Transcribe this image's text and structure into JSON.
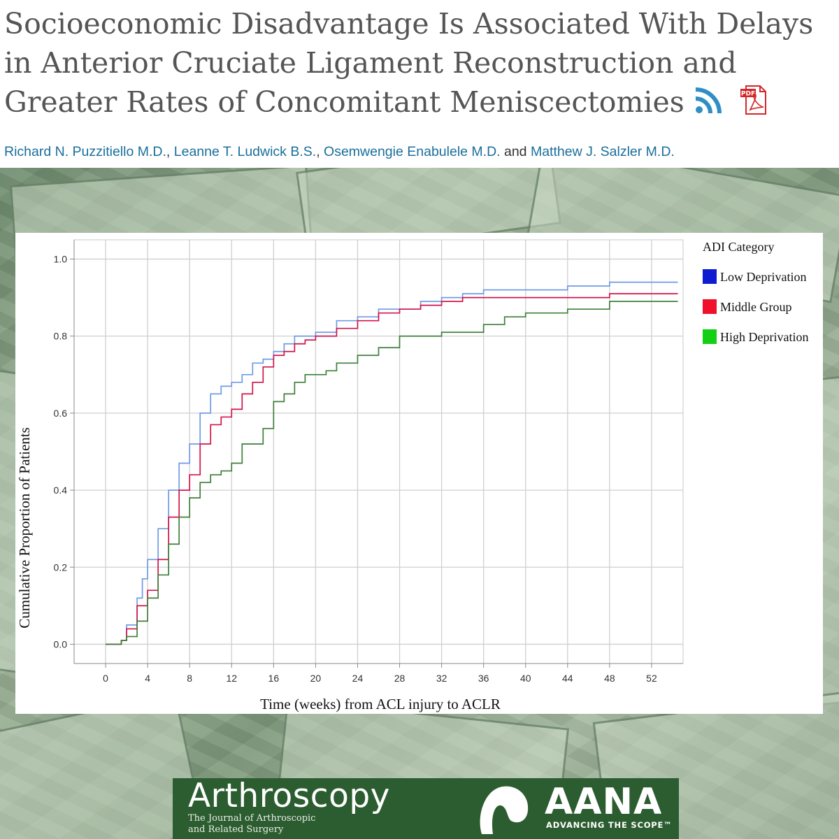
{
  "article": {
    "title": "Socioeconomic Disadvantage Is Associated With Delays in Anterior Cruciate Ligament Reconstruction and Greater Rates of Concomitant Meniscectomies",
    "authors": [
      {
        "name": "Richard N. Puzzitiello M.D."
      },
      {
        "name": "Leanne T. Ludwick B.S."
      },
      {
        "name": "Osemwengie Enabulele M.D."
      },
      {
        "name": "Matthew J. Salzler M.D."
      }
    ],
    "sep_comma": ", ",
    "sep_and": " and "
  },
  "icons": {
    "rss": "rss-feed-icon",
    "pdf": "pdf-icon",
    "pdf_label": "PDF"
  },
  "colors": {
    "low": "#6f9be6",
    "middle": "#d2144b",
    "high": "#3f7f3a",
    "footer": "#2c5d30"
  },
  "chart_data": {
    "type": "line",
    "xlabel": "Time (weeks) from ACL injury to ACLR",
    "ylabel": "Cumulative Proportion of Patients",
    "xlim": [
      -3,
      55
    ],
    "ylim": [
      -0.05,
      1.05
    ],
    "xticks": [
      0,
      4,
      8,
      12,
      16,
      20,
      24,
      28,
      32,
      36,
      40,
      44,
      48,
      52
    ],
    "yticks": [
      0.0,
      0.2,
      0.4,
      0.6,
      0.8,
      1.0
    ],
    "ytick_labels": [
      "0.0",
      "0.2",
      "0.4",
      "0.6",
      "0.8",
      "1.0"
    ],
    "grid": true,
    "legend": {
      "title": "ADI Category",
      "position": "top-right"
    },
    "series": [
      {
        "name": "Low Deprivation",
        "color": "#6f9be6",
        "legend_color": "#0f1bd1",
        "x": [
          0,
          1.5,
          2,
          3,
          3.5,
          4,
          5,
          6,
          7,
          8,
          9,
          10,
          11,
          12,
          13,
          14,
          15,
          16,
          17,
          18,
          19,
          20,
          22,
          24,
          26,
          28,
          30,
          32,
          34,
          36,
          38,
          40,
          44,
          46,
          48,
          50,
          52,
          54.5
        ],
        "y": [
          0,
          0.01,
          0.05,
          0.12,
          0.17,
          0.22,
          0.3,
          0.4,
          0.47,
          0.52,
          0.6,
          0.65,
          0.67,
          0.68,
          0.7,
          0.73,
          0.74,
          0.76,
          0.78,
          0.8,
          0.8,
          0.81,
          0.84,
          0.85,
          0.87,
          0.87,
          0.89,
          0.9,
          0.91,
          0.92,
          0.92,
          0.92,
          0.93,
          0.93,
          0.94,
          0.94,
          0.94,
          0.94
        ]
      },
      {
        "name": "Middle Group",
        "color": "#d2144b",
        "legend_color": "#f0102b",
        "x": [
          0,
          1.5,
          2,
          3,
          4,
          5,
          6,
          7,
          8,
          9,
          10,
          11,
          12,
          13,
          14,
          15,
          16,
          17,
          18,
          19,
          20,
          22,
          24,
          26,
          28,
          30,
          32,
          34,
          36,
          38,
          40,
          44,
          46,
          48,
          50,
          52,
          54.5
        ],
        "y": [
          0,
          0.01,
          0.04,
          0.1,
          0.14,
          0.22,
          0.33,
          0.4,
          0.44,
          0.52,
          0.57,
          0.59,
          0.61,
          0.65,
          0.68,
          0.72,
          0.75,
          0.76,
          0.78,
          0.79,
          0.8,
          0.82,
          0.84,
          0.86,
          0.87,
          0.88,
          0.89,
          0.9,
          0.9,
          0.9,
          0.9,
          0.9,
          0.9,
          0.91,
          0.91,
          0.91,
          0.91
        ]
      },
      {
        "name": "High Deprivation",
        "color": "#3f7f3a",
        "legend_color": "#14d014",
        "x": [
          0,
          1.5,
          2,
          3,
          4,
          5,
          6,
          7,
          8,
          9,
          10,
          11,
          12,
          13,
          14,
          15,
          16,
          17,
          18,
          19,
          20,
          21,
          22,
          24,
          26,
          28,
          30,
          32,
          34,
          36,
          38,
          40,
          44,
          46,
          48,
          50,
          52,
          54.5
        ],
        "y": [
          0,
          0.01,
          0.02,
          0.06,
          0.12,
          0.18,
          0.26,
          0.33,
          0.38,
          0.42,
          0.44,
          0.45,
          0.47,
          0.52,
          0.52,
          0.56,
          0.63,
          0.65,
          0.68,
          0.7,
          0.7,
          0.71,
          0.73,
          0.75,
          0.77,
          0.8,
          0.8,
          0.81,
          0.81,
          0.83,
          0.85,
          0.86,
          0.87,
          0.87,
          0.89,
          0.89,
          0.89,
          0.89
        ]
      }
    ]
  },
  "footer": {
    "journal_name": "Arthroscopy",
    "journal_subtitle_1": "The Journal of Arthroscopic",
    "journal_subtitle_2": "and Related Surgery",
    "org_name": "AANA",
    "org_tagline": "ADVANCING THE SCOPE™"
  }
}
